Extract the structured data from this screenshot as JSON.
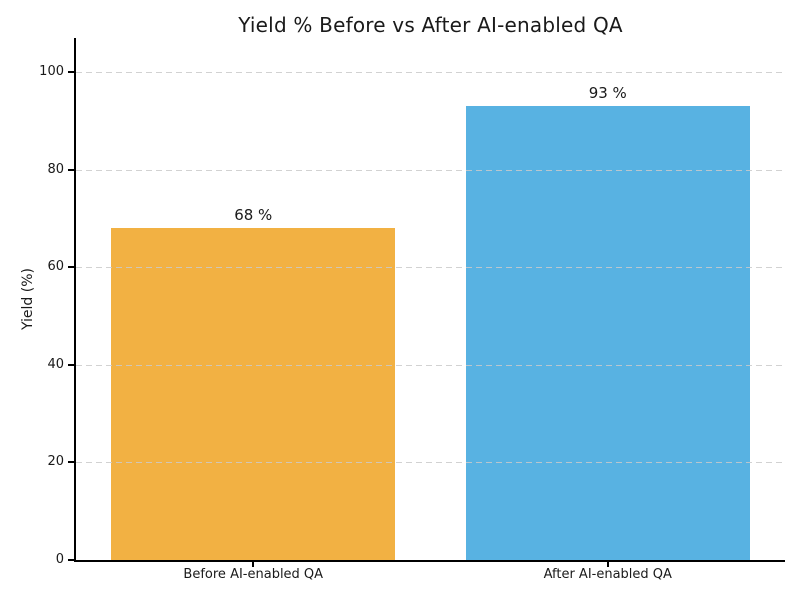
{
  "chart_data": {
    "type": "bar",
    "title": "Yield % Before vs After AI-enabled QA",
    "xlabel": "",
    "ylabel": "Yield (%)",
    "categories": [
      "Before AI-enabled QA",
      "After AI-enabled QA"
    ],
    "values": [
      68,
      93
    ],
    "bar_value_labels": [
      "68 %",
      "93 %"
    ],
    "bar_colors": [
      "#F2B143",
      "#58B2E2"
    ],
    "yticks": [
      0,
      20,
      40,
      60,
      80,
      100
    ],
    "ylim": [
      0,
      107
    ],
    "grid": "horizontal-dashed",
    "gridline_color": "#CACACA",
    "axis_color": "#000000",
    "text_color": "#1A1A1A",
    "background_color": "#FFFFFF",
    "legend": null
  }
}
